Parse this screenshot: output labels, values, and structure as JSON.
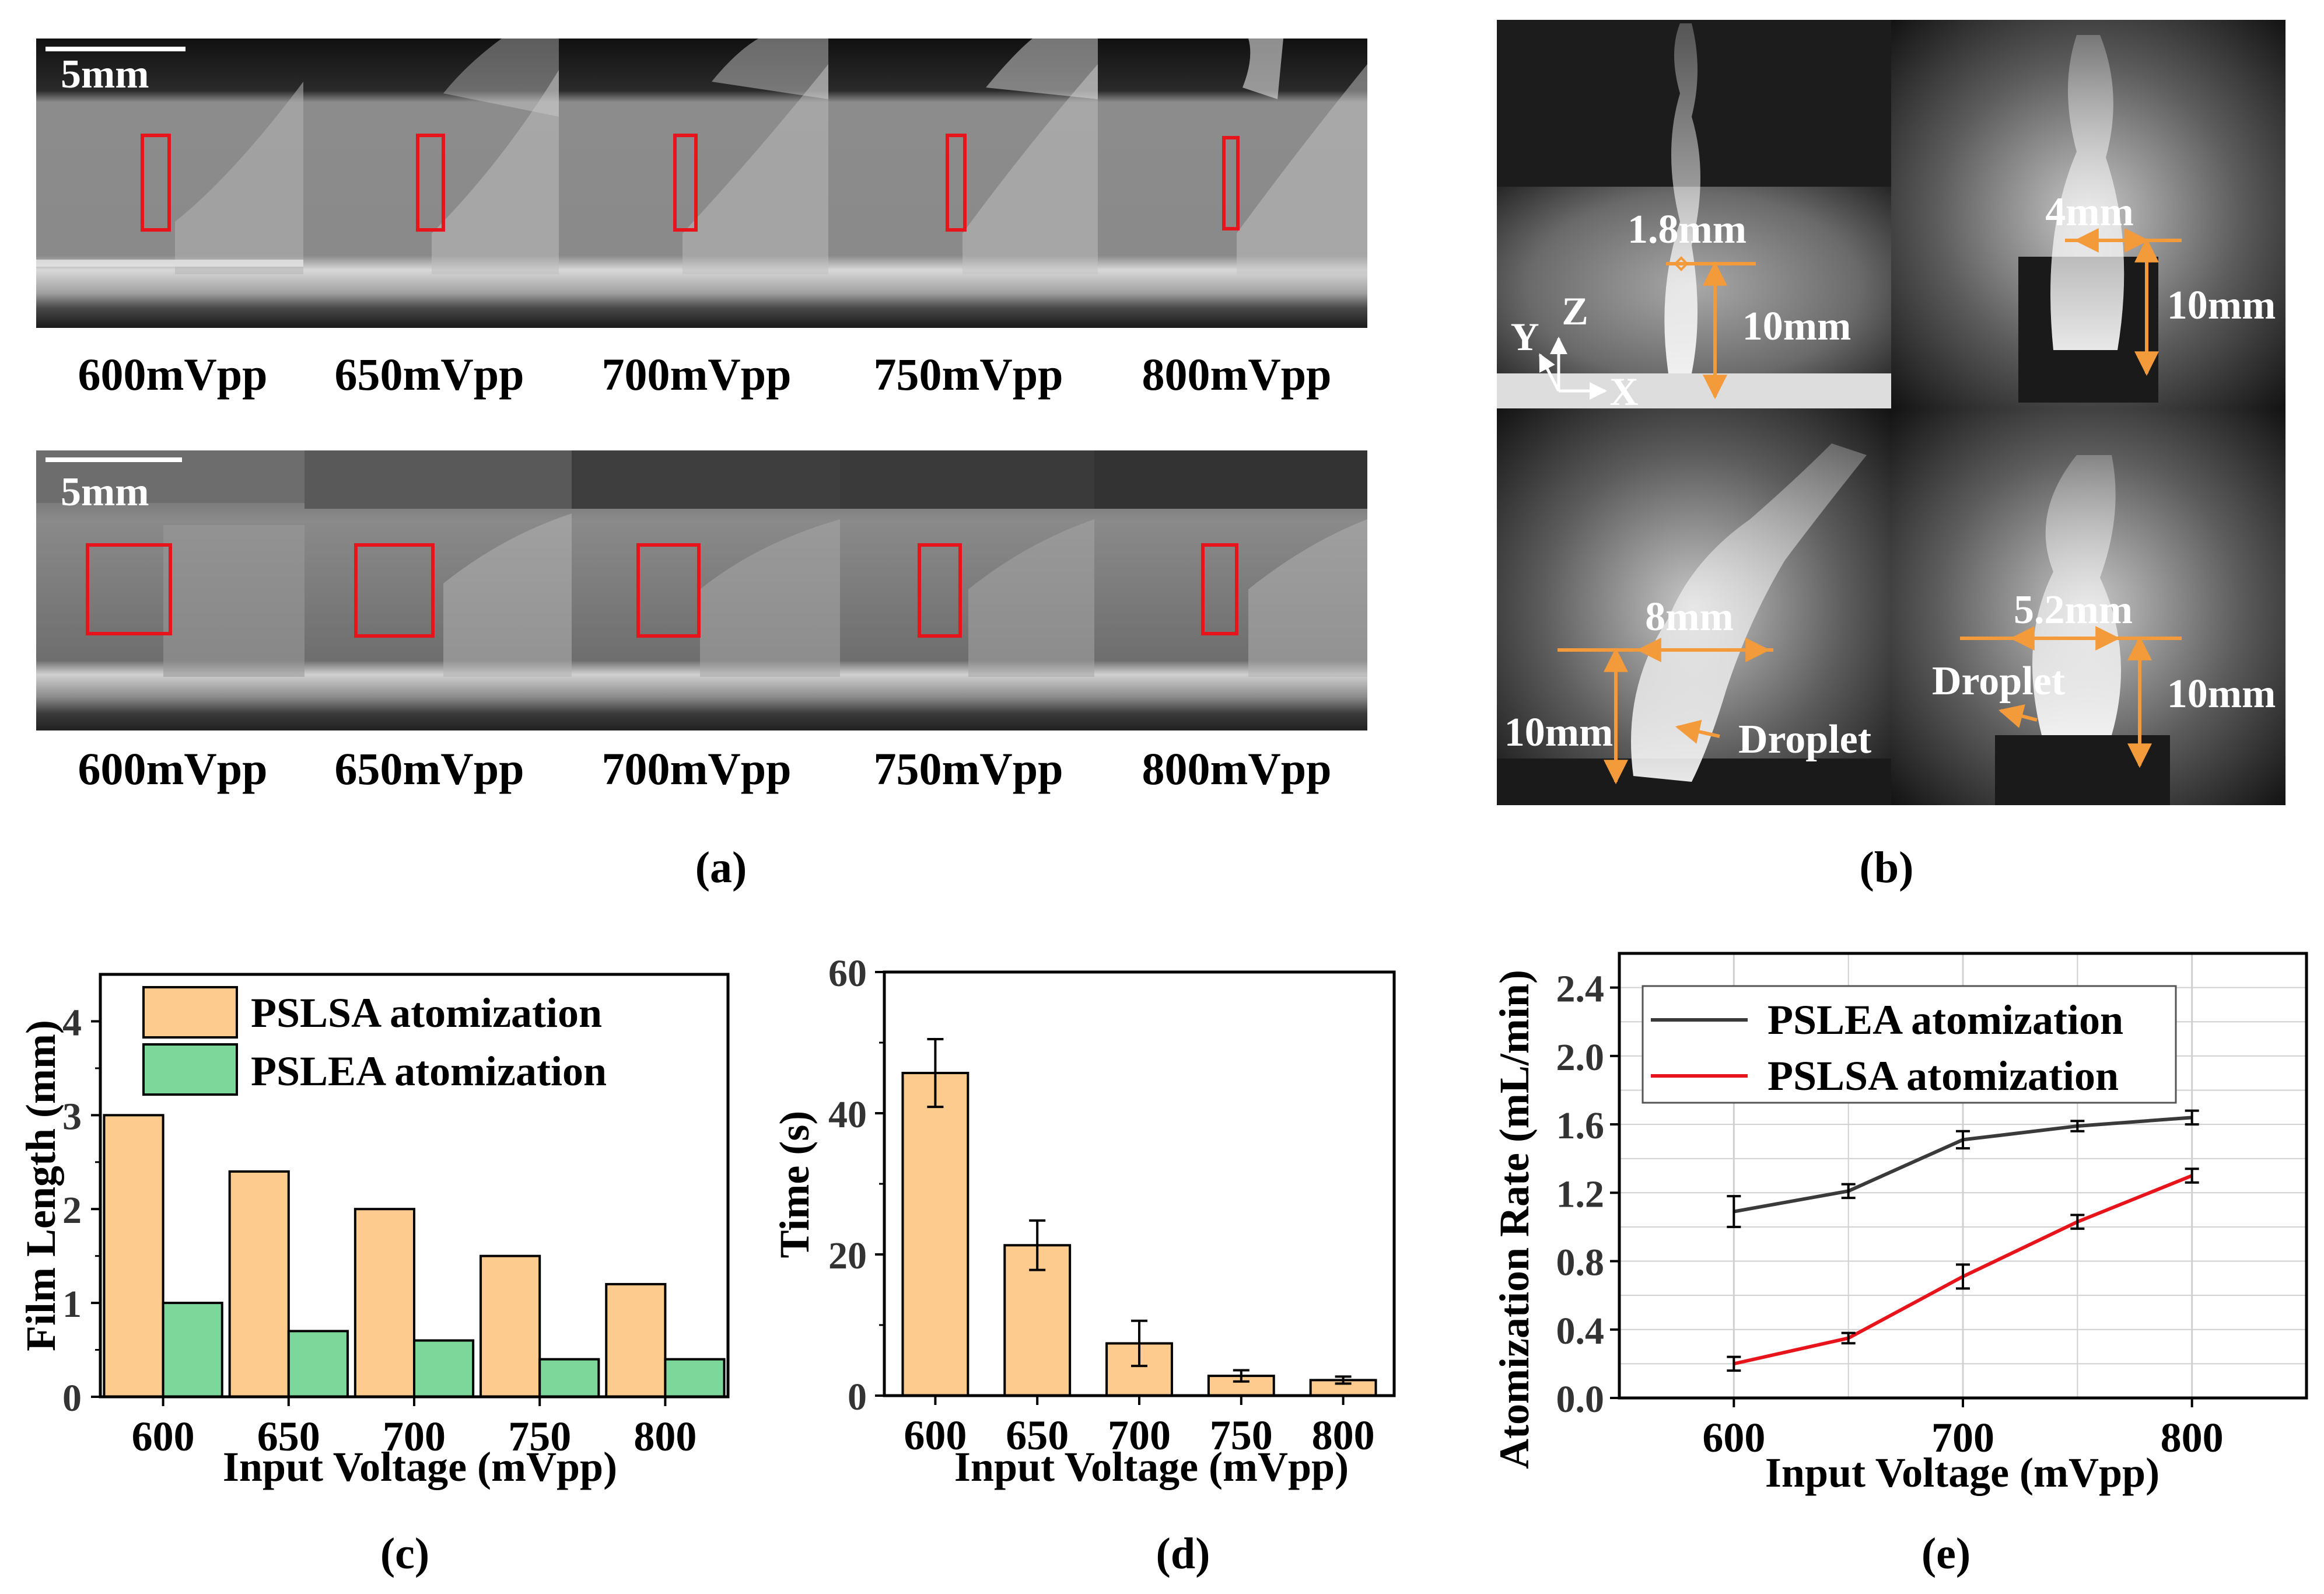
{
  "panels": {
    "a": {
      "label": "(a)",
      "scalebar_label": "5mm",
      "top_row_labels": [
        "600mVpp",
        "650mVpp",
        "700mVpp",
        "750mVpp",
        "800mVpp"
      ],
      "bottom_row_labels": [
        "600mVpp",
        "650mVpp",
        "700mVpp",
        "750mVpp",
        "800mVpp"
      ]
    },
    "b": {
      "label": "(b)",
      "axes": {
        "x": "X",
        "y": "Y",
        "z": "Z"
      },
      "annotations": {
        "tl_width": "1.8mm",
        "tl_height": "10mm",
        "tr_width": "4mm",
        "tr_height": "10mm",
        "bl_width": "8mm",
        "bl_height": "10mm",
        "bl_droplet": "Droplet",
        "br_width": "5.2mm",
        "br_height": "10mm",
        "br_droplet": "Droplet"
      }
    },
    "c": {
      "label": "(c)"
    },
    "d": {
      "label": "(d)"
    },
    "e": {
      "label": "(e)"
    }
  },
  "colors": {
    "pslsa_bar": "#FDCB8E",
    "pslea_bar": "#7CD79A",
    "time_bar": "#FDCB8E",
    "pslea_line": "#3a3a3a",
    "pslsa_line": "#E8141B",
    "highlight_box": "#E8141B",
    "dimension": "#F39A3A"
  },
  "chart_data": [
    {
      "id": "c",
      "type": "bar",
      "categories": [
        "600",
        "650",
        "700",
        "750",
        "800"
      ],
      "series": [
        {
          "name": "PSLSA atomization",
          "values": [
            3.0,
            2.4,
            2.0,
            1.5,
            1.2
          ]
        },
        {
          "name": "PSLEA atomization",
          "values": [
            1.0,
            0.7,
            0.6,
            0.4,
            0.4
          ]
        }
      ],
      "xlabel": "Input Voltage (mVpp)",
      "ylabel": "Film Length (mm)",
      "ylim": [
        0,
        4.5
      ],
      "yticks": [
        "0",
        "1",
        "2",
        "3",
        "4"
      ],
      "legend": "top-right"
    },
    {
      "id": "d",
      "type": "bar",
      "categories": [
        "600",
        "650",
        "700",
        "750",
        "800"
      ],
      "values": [
        45.7,
        21.3,
        7.4,
        2.8,
        2.2
      ],
      "errors": [
        4.8,
        3.5,
        3.2,
        0.8,
        0.5
      ],
      "xlabel": "Input Voltage (mVpp)",
      "ylabel": "Time (s)",
      "ylim": [
        0,
        60
      ],
      "yticks": [
        "0",
        "20",
        "40",
        "60"
      ]
    },
    {
      "id": "e",
      "type": "line",
      "x": [
        600,
        650,
        700,
        750,
        800
      ],
      "series": [
        {
          "name": "PSLEA atomization",
          "values": [
            1.09,
            1.21,
            1.51,
            1.59,
            1.64
          ],
          "errors": [
            0.09,
            0.04,
            0.05,
            0.03,
            0.04
          ]
        },
        {
          "name": "PSLSA atomization",
          "values": [
            0.2,
            0.35,
            0.71,
            1.03,
            1.3
          ],
          "errors": [
            0.04,
            0.03,
            0.07,
            0.04,
            0.04
          ]
        }
      ],
      "xlabel": "Input Voltage (mVpp)",
      "ylabel": "Atomization Rate (mL/min)",
      "xlim": [
        550,
        850
      ],
      "ylim": [
        0,
        2.6
      ],
      "xticks": [
        "600",
        "700",
        "800"
      ],
      "yticks": [
        "0.0",
        "0.4",
        "0.8",
        "1.2",
        "1.6",
        "2.0",
        "2.4"
      ],
      "grid": true,
      "legend": "top-left"
    }
  ]
}
